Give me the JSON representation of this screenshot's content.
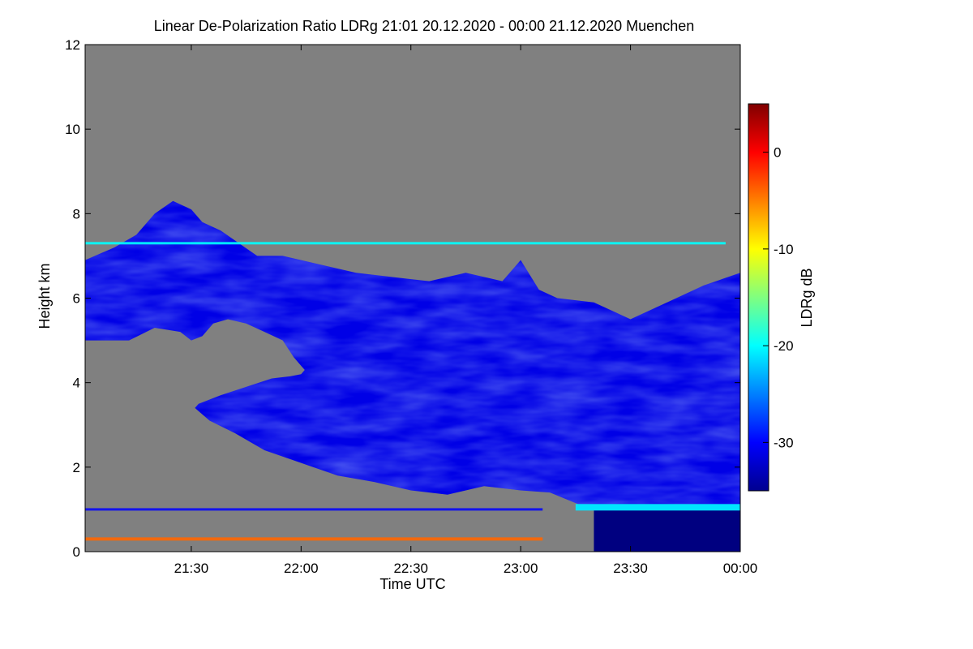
{
  "chart_data": {
    "type": "heatmap",
    "title": "Linear De-Polarization Ratio LDRg   21:01 20.12.2020 - 00:00 21.12.2020 Muenchen",
    "xlabel": "Time UTC",
    "ylabel": "Height km",
    "x_ticks": [
      "21:30",
      "22:00",
      "22:30",
      "23:00",
      "23:30",
      "00:00"
    ],
    "x_range_minutes": [
      -59,
      120
    ],
    "x_tick_minutes": [
      -30,
      0,
      30,
      60,
      90,
      120
    ],
    "y_ticks": [
      "0",
      "2",
      "4",
      "6",
      "8",
      "10",
      "12"
    ],
    "y_range": [
      0,
      12
    ],
    "colorbar": {
      "label": "LDRg dB",
      "range": [
        -35,
        5
      ],
      "ticks": [
        "0",
        "-10",
        "-20",
        "-30"
      ],
      "tick_values": [
        0,
        -10,
        -20,
        -30
      ],
      "colormap": "jet"
    },
    "background_color": "#808080",
    "cloud_upper_boundary": {
      "time_min": [
        -59,
        -51,
        -45,
        -40,
        -35,
        -30,
        -27,
        -22,
        -17,
        -12,
        -5,
        0,
        5,
        15,
        25,
        35,
        45,
        55,
        60,
        65,
        70,
        80,
        90,
        100,
        110,
        120
      ],
      "top_km": [
        6.9,
        7.2,
        7.5,
        8.0,
        8.3,
        8.1,
        7.8,
        7.6,
        7.3,
        7.0,
        7.0,
        6.9,
        6.8,
        6.6,
        6.5,
        6.4,
        6.6,
        6.4,
        6.9,
        6.2,
        6.0,
        5.9,
        5.5,
        5.9,
        6.3,
        6.6
      ]
    },
    "cloud_lower_boundary": {
      "time_min": [
        -59,
        -47,
        -40,
        -33,
        -30,
        -27,
        -24,
        -20,
        -15,
        -10,
        -5,
        -2,
        0,
        1,
        0,
        -3,
        -8,
        -15,
        -22,
        -28,
        -29,
        -25,
        -18,
        -10,
        0,
        10,
        20,
        30,
        40,
        50,
        60,
        68,
        75,
        80,
        82
      ],
      "base_km": [
        5.0,
        5.0,
        5.3,
        5.2,
        5.0,
        5.1,
        5.4,
        5.5,
        5.4,
        5.2,
        5.0,
        4.6,
        4.4,
        4.3,
        4.2,
        4.15,
        4.1,
        3.9,
        3.7,
        3.5,
        3.4,
        3.1,
        2.8,
        2.4,
        2.1,
        1.8,
        1.65,
        1.45,
        1.35,
        1.55,
        1.45,
        1.4,
        1.15,
        1.0,
        0.8
      ]
    },
    "cloud_core_ldr_db": -31,
    "lower_right_block": {
      "time_min": [
        80,
        120
      ],
      "height_km": [
        0,
        1.0
      ],
      "ldr_db": -35
    },
    "melting_layer": {
      "time_min": [
        75,
        120
      ],
      "height_km": 1.05,
      "ldr_db": -21
    },
    "cirrus_band": {
      "time_min": [
        -59,
        116
      ],
      "height_km": 7.3,
      "ldr_db": -20
    },
    "ground_clutter": {
      "time_min": [
        -59,
        66
      ],
      "height_km": 0.3,
      "ldr_db": -4
    },
    "artifact_layer": {
      "time_min": [
        -59,
        66
      ],
      "height_km": 1.0,
      "ldr_db": -30
    }
  }
}
